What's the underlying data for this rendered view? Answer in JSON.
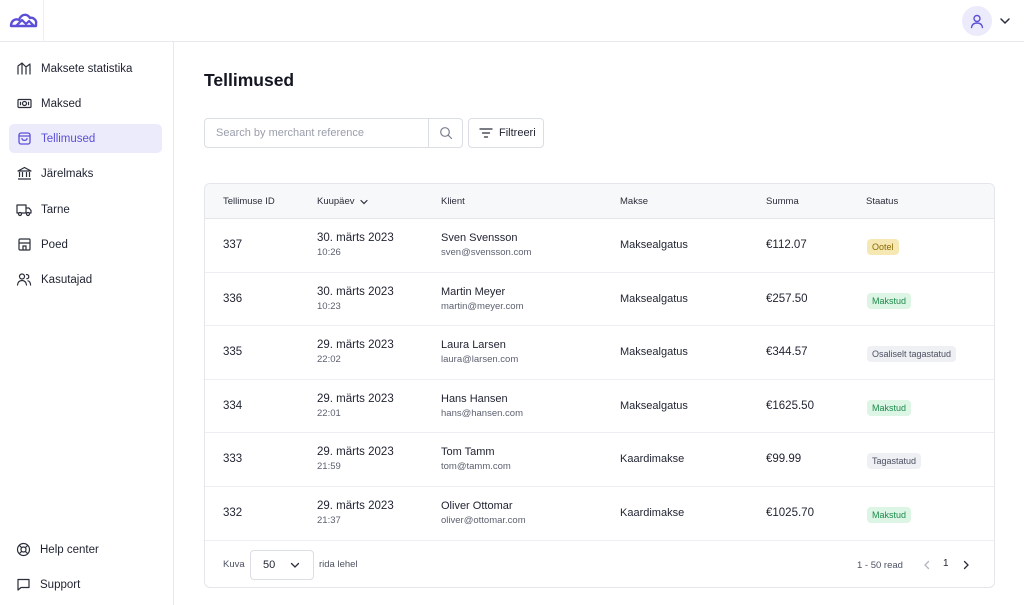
{
  "colors": {
    "accent": "#5b4fd8",
    "accent_bg": "#ecebfb",
    "pending": "#f5e8b3",
    "paid": "#dcf5e4",
    "neutral": "#eef0f4"
  },
  "header": {
    "logo_icon": "cloud-mountain-logo-icon",
    "avatar_icon": "user-icon"
  },
  "sidebar": {
    "items": [
      {
        "label": "Maksete statistika",
        "icon": "chart-icon"
      },
      {
        "label": "Maksed",
        "icon": "banknote-icon"
      },
      {
        "label": "Tellimused",
        "icon": "shopping-bag-icon",
        "active": true
      },
      {
        "label": "Järelmaks",
        "icon": "bank-icon"
      },
      {
        "label": "Tarne",
        "icon": "truck-icon"
      },
      {
        "label": "Poed",
        "icon": "store-icon"
      },
      {
        "label": "Kasutajad",
        "icon": "users-icon"
      }
    ],
    "bottom": [
      {
        "label": "Help center",
        "icon": "lifebuoy-icon"
      },
      {
        "label": "Support",
        "icon": "chat-icon"
      }
    ]
  },
  "main": {
    "title": "Tellimused",
    "search": {
      "placeholder": "Search by merchant reference",
      "value": ""
    },
    "filter_label": "Filtreeri"
  },
  "table": {
    "columns": [
      "Tellimuse ID",
      "Kuupäev",
      "Klient",
      "Makse",
      "Summa",
      "Staatus"
    ],
    "rows": [
      {
        "id": "337",
        "date": "30. märts 2023",
        "time": "10:26",
        "name": "Sven Svensson",
        "email": "sven@svensson.com",
        "payment": "Maksealgatus",
        "sum": "€112.07",
        "status": "Ootel",
        "status_type": "pending"
      },
      {
        "id": "336",
        "date": "30. märts 2023",
        "time": "10:23",
        "name": "Martin Meyer",
        "email": "martin@meyer.com",
        "payment": "Maksealgatus",
        "sum": "€257.50",
        "status": "Makstud",
        "status_type": "paid"
      },
      {
        "id": "335",
        "date": "29. märts 2023",
        "time": "22:02",
        "name": "Laura Larsen",
        "email": "laura@larsen.com",
        "payment": "Maksealgatus",
        "sum": "€344.57",
        "status": "Osaliselt tagastatud",
        "status_type": "neutral"
      },
      {
        "id": "334",
        "date": "29. märts 2023",
        "time": "22:01",
        "name": "Hans Hansen",
        "email": "hans@hansen.com",
        "payment": "Maksealgatus",
        "sum": "€1625.50",
        "status": "Makstud",
        "status_type": "paid"
      },
      {
        "id": "333",
        "date": "29. märts 2023",
        "time": "21:59",
        "name": "Tom Tamm",
        "email": "tom@tamm.com",
        "payment": "Kaardimakse",
        "sum": "€99.99",
        "status": "Tagastatud",
        "status_type": "neutral"
      },
      {
        "id": "332",
        "date": "29. märts 2023",
        "time": "21:37",
        "name": "Oliver Ottomar",
        "email": "oliver@ottomar.com",
        "payment": "Kaardimakse",
        "sum": "€1025.70",
        "status": "Makstud",
        "status_type": "paid"
      }
    ],
    "footer": {
      "show_label": "Kuva",
      "page_size": "50",
      "per_page_label": "rida lehel",
      "range_label": "1 - 50 read",
      "current_page": "1"
    }
  }
}
